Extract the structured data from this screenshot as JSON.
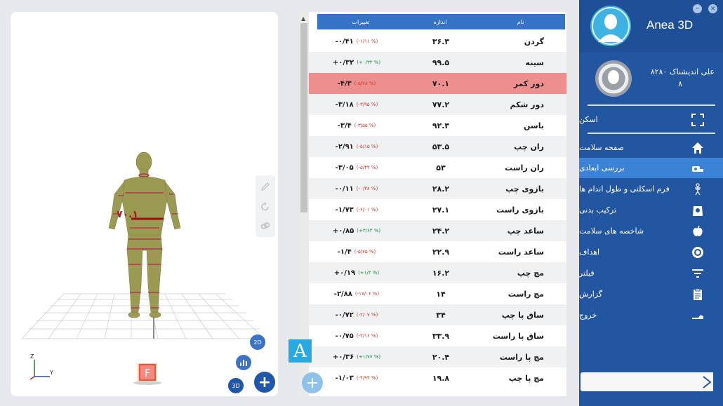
{
  "app": {
    "title": "Anea 3D",
    "minimize_icon": "minimize-icon",
    "close_icon": "close-icon"
  },
  "user": {
    "name": "علی اندیشناک ۸۲۸۰",
    "id": "۸"
  },
  "viewer": {
    "waist_label": "۷۰.۱",
    "front_label": "F",
    "axis_z": "Z",
    "axis_y": "Y",
    "btn_2d": "2D",
    "btn_3d": "3D",
    "add_label": "+"
  },
  "table": {
    "headers": {
      "change": "تغییرات",
      "size": "اندازه",
      "name": "نام"
    },
    "rows": [
      {
        "name": "گردن",
        "size": "۳۶.۳",
        "value": "-۰/۴۱",
        "pct": "(-۱/۱۱ %)",
        "pct_sign": "neg"
      },
      {
        "name": "سینه",
        "size": "۹۹.۵",
        "value": "+۰/۳۲",
        "pct": "(+۰/۳۳ %)",
        "pct_sign": "pos"
      },
      {
        "name": "دور کمر",
        "size": "۷۰.۱",
        "value": "-۴/۳",
        "pct": "(-۵/۷۸ %)",
        "pct_sign": "neg"
      },
      {
        "name": "دور شکم",
        "size": "۷۷.۲",
        "value": "-۳/۱۸",
        "pct": "(-۳/۹۵ %)",
        "pct_sign": "neg"
      },
      {
        "name": "باسن",
        "size": "۹۲.۳",
        "value": "-۳/۴",
        "pct": "(-۳/۵۵ %)",
        "pct_sign": "neg"
      },
      {
        "name": "ران چپ",
        "size": "۵۳.۵",
        "value": "-۲/۹۱",
        "pct": "(-۵/۱۵ %)",
        "pct_sign": "neg"
      },
      {
        "name": "ران راست",
        "size": "۵۳",
        "value": "-۳/۰۵",
        "pct": "(-۵/۴۴ %)",
        "pct_sign": "neg"
      },
      {
        "name": "بازوی چپ",
        "size": "۲۸.۲",
        "value": "-۰/۱۱",
        "pct": "(-۰/۳۸ %)",
        "pct_sign": "neg"
      },
      {
        "name": "بازوی راست",
        "size": "۲۷.۱",
        "value": "-۱/۷۳",
        "pct": "(-۶/۰۱ %)",
        "pct_sign": "neg"
      },
      {
        "name": "ساعد چپ",
        "size": "۲۴.۲",
        "value": "+۰/۸۵",
        "pct": "(+۳/۶۳ %)",
        "pct_sign": "pos"
      },
      {
        "name": "ساعد راست",
        "size": "۲۲.۹",
        "value": "-۱/۴",
        "pct": "(-۵/۷۵ %)",
        "pct_sign": "neg"
      },
      {
        "name": "مچ چپ",
        "size": "۱۶.۲",
        "value": "+۰/۱۹",
        "pct": "(+۱/۲ %)",
        "pct_sign": "pos"
      },
      {
        "name": "مچ راست",
        "size": "۱۴",
        "value": "-۲/۸۸",
        "pct": "(-۱۷/۰۶ %)",
        "pct_sign": "neg"
      },
      {
        "name": "ساق پا چپ",
        "size": "۳۴",
        "value": "-۰/۷۲",
        "pct": "(-۲/۰۷ %)",
        "pct_sign": "neg"
      },
      {
        "name": "ساق پا راست",
        "size": "۳۳.۹",
        "value": "-۰/۷۵",
        "pct": "(-۲/۱۶ %)",
        "pct_sign": "neg"
      },
      {
        "name": "مچ پا راست",
        "size": "۲۰.۴",
        "value": "+۰/۳۶",
        "pct": "(+۱/۷۷ %)",
        "pct_sign": "pos"
      },
      {
        "name": "مچ پا چپ",
        "size": "۱۹.۸",
        "value": "-۱/۰۳",
        "pct": "(-۴/۹۳ %)",
        "pct_sign": "neg"
      }
    ],
    "highlight_index": 2,
    "badge": "A",
    "add_label": "+"
  },
  "menu": {
    "items": [
      {
        "label": "اسکن",
        "icon": "scan-icon"
      },
      {
        "label": "صفحه سلامت",
        "icon": "home-icon"
      },
      {
        "label": "بررسی ابعادی",
        "icon": "tape-measure-icon"
      },
      {
        "label": "فرم اسکلتی و طول اندام ها",
        "icon": "skeleton-icon"
      },
      {
        "label": "ترکیب بدنی",
        "icon": "body-composition-icon"
      },
      {
        "label": "شاخصه های سلامت",
        "icon": "apple-icon"
      },
      {
        "label": "اهداف",
        "icon": "target-icon"
      },
      {
        "label": "فیلتر",
        "icon": "filter-icon"
      },
      {
        "label": "گزارش",
        "icon": "clipboard-icon"
      },
      {
        "label": "خروج",
        "icon": "exit-icon"
      }
    ],
    "active_index": 2
  },
  "colors": {
    "sidebar": "#2256a0",
    "sidebar_active": "#3c83d8",
    "table_header": "#3473c5",
    "highlight_row": "#ee8f8f",
    "positive": "#1d8a3a",
    "negative": "#c0392b"
  }
}
